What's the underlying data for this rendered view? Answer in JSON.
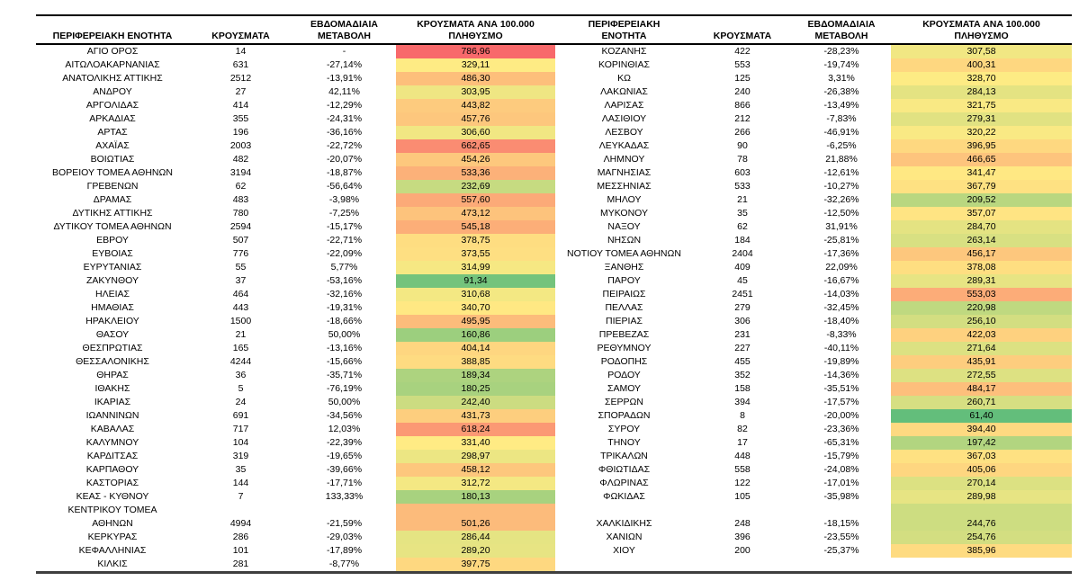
{
  "headers": {
    "left": {
      "region": "ΠΕΡΙΦΕΡΕΙΑΚΗ ΕΝΟΤΗΤΑ",
      "cases": "ΚΡΟΥΣΜΑΤΑ",
      "change": "ΕΒΔΟΜΑΔΙΑΙΑ\nΜΕΤΑΒΟΛΗ",
      "incidence": "ΚΡΟΥΣΜΑΤΑ ΑΝΑ 100.000\nΠΛΗΘΥΣΜΟ"
    },
    "right": {
      "region": "ΠΕΡΙΦΕΡΕΙΑΚΗ\nΕΝΟΤΗΤΑ",
      "cases": "ΚΡΟΥΣΜΑΤΑ",
      "change": "ΕΒΔΟΜΑΔΙΑΙΑ\nΜΕΤΑΒΟΛΗ",
      "incidence": "ΚΡΟΥΣΜΑΤΑ ΑΝΑ 100.000\nΠΛΗΘΥΣΜΟ"
    }
  },
  "chart_data": {
    "type": "table",
    "columns": [
      "ΠΕΡΙΦΕΡΕΙΑΚΗ ΕΝΟΤΗΤΑ",
      "ΚΡΟΥΣΜΑΤΑ",
      "ΕΒΔΟΜΑΔΙΑΙΑ ΜΕΤΑΒΟΛΗ",
      "ΚΡΟΥΣΜΑΤΑ ΑΝΑ 100.000 ΠΛΗΘΥΣΜΟ"
    ],
    "color_scale": {
      "min_value": 61.4,
      "mid_value": 331.4,
      "max_value": 786.96,
      "min_color": "#63BE7B",
      "mid_color": "#FFEB84",
      "max_color": "#F8696B"
    },
    "left_rows": [
      [
        "ΑΓΙΟ ΟΡΟΣ",
        "14",
        "-",
        "786,96"
      ],
      [
        "ΑΙΤΩΛΟΑΚΑΡΝΑΝΙΑΣ",
        "631",
        "-27,14%",
        "329,11"
      ],
      [
        "ΑΝΑΤΟΛΙΚΗΣ ΑΤΤΙΚΗΣ",
        "2512",
        "-13,91%",
        "486,30"
      ],
      [
        "ΑΝΔΡΟΥ",
        "27",
        "42,11%",
        "303,95"
      ],
      [
        "ΑΡΓΟΛΙΔΑΣ",
        "414",
        "-12,29%",
        "443,82"
      ],
      [
        "ΑΡΚΑΔΙΑΣ",
        "355",
        "-24,31%",
        "457,76"
      ],
      [
        "ΑΡΤΑΣ",
        "196",
        "-36,16%",
        "306,60"
      ],
      [
        "ΑΧΑΪΑΣ",
        "2003",
        "-22,72%",
        "662,65"
      ],
      [
        "ΒΟΙΩΤΙΑΣ",
        "482",
        "-20,07%",
        "454,26"
      ],
      [
        "ΒΟΡΕΙΟΥ ΤΟΜΕΑ ΑΘΗΝΩΝ",
        "3194",
        "-18,87%",
        "533,36"
      ],
      [
        "ΓΡΕΒΕΝΩΝ",
        "62",
        "-56,64%",
        "232,69"
      ],
      [
        "ΔΡΑΜΑΣ",
        "483",
        "-3,98%",
        "557,60"
      ],
      [
        "ΔΥΤΙΚΗΣ ΑΤΤΙΚΗΣ",
        "780",
        "-7,25%",
        "473,12"
      ],
      [
        "ΔΥΤΙΚΟΥ ΤΟΜΕΑ ΑΘΗΝΩΝ",
        "2594",
        "-15,17%",
        "545,18"
      ],
      [
        "ΕΒΡΟΥ",
        "507",
        "-22,71%",
        "378,75"
      ],
      [
        "ΕΥΒΟΙΑΣ",
        "776",
        "-22,09%",
        "373,55"
      ],
      [
        "ΕΥΡΥΤΑΝΙΑΣ",
        "55",
        "5,77%",
        "314,99"
      ],
      [
        "ΖΑΚΥΝΘΟΥ",
        "37",
        "-53,16%",
        "91,34"
      ],
      [
        "ΗΛΕΙΑΣ",
        "464",
        "-32,16%",
        "310,68"
      ],
      [
        "ΗΜΑΘΙΑΣ",
        "443",
        "-19,31%",
        "340,70"
      ],
      [
        "ΗΡΑΚΛΕΙΟΥ",
        "1500",
        "-18,66%",
        "495,95"
      ],
      [
        "ΘΑΣΟΥ",
        "21",
        "50,00%",
        "160,86"
      ],
      [
        "ΘΕΣΠΡΩΤΙΑΣ",
        "165",
        "-13,16%",
        "404,14"
      ],
      [
        "ΘΕΣΣΑΛΟΝΙΚΗΣ",
        "4244",
        "-15,66%",
        "388,85"
      ],
      [
        "ΘΗΡΑΣ",
        "36",
        "-35,71%",
        "189,34"
      ],
      [
        "ΙΘΑΚΗΣ",
        "5",
        "-76,19%",
        "180,25"
      ],
      [
        "ΙΚΑΡΙΑΣ",
        "24",
        "50,00%",
        "242,40"
      ],
      [
        "ΙΩΑΝΝΙΝΩΝ",
        "691",
        "-34,56%",
        "431,73"
      ],
      [
        "ΚΑΒΑΛΑΣ",
        "717",
        "12,03%",
        "618,24"
      ],
      [
        "ΚΑΛΥΜΝΟΥ",
        "104",
        "-22,39%",
        "331,40"
      ],
      [
        "ΚΑΡΔΙΤΣΑΣ",
        "319",
        "-19,65%",
        "298,97"
      ],
      [
        "ΚΑΡΠΑΘΟΥ",
        "35",
        "-39,66%",
        "458,12"
      ],
      [
        "ΚΑΣΤΟΡΙΑΣ",
        "144",
        "-17,71%",
        "312,72"
      ],
      [
        "ΚΕΑΣ - ΚΥΘΝΟΥ",
        "7",
        "133,33%",
        "180,13"
      ],
      [
        "ΚΕΝΤΡΙΚΟΥ ΤΟΜΕΑ\nΑΘΗΝΩΝ",
        "4994",
        "-21,59%",
        "501,26"
      ],
      [
        "ΚΕΡΚΥΡΑΣ",
        "286",
        "-29,03%",
        "286,44"
      ],
      [
        "ΚΕΦΑΛΛΗΝΙΑΣ",
        "101",
        "-17,89%",
        "289,20"
      ],
      [
        "ΚΙΛΚΙΣ",
        "281",
        "-8,77%",
        "397,75"
      ]
    ],
    "right_rows": [
      [
        "ΚΟΖΑΝΗΣ",
        "422",
        "-28,23%",
        "307,58"
      ],
      [
        "ΚΟΡΙΝΘΙΑΣ",
        "553",
        "-19,74%",
        "400,31"
      ],
      [
        "ΚΩ",
        "125",
        "3,31%",
        "328,70"
      ],
      [
        "ΛΑΚΩΝΙΑΣ",
        "240",
        "-26,38%",
        "284,13"
      ],
      [
        "ΛΑΡΙΣΑΣ",
        "866",
        "-13,49%",
        "321,75"
      ],
      [
        "ΛΑΣΙΘΙΟΥ",
        "212",
        "-7,83%",
        "279,31"
      ],
      [
        "ΛΕΣΒΟΥ",
        "266",
        "-46,91%",
        "320,22"
      ],
      [
        "ΛΕΥΚΑΔΑΣ",
        "90",
        "-6,25%",
        "396,95"
      ],
      [
        "ΛΗΜΝΟΥ",
        "78",
        "21,88%",
        "466,65"
      ],
      [
        "ΜΑΓΝΗΣΙΑΣ",
        "603",
        "-12,61%",
        "341,47"
      ],
      [
        "ΜΕΣΣΗΝΙΑΣ",
        "533",
        "-10,27%",
        "367,79"
      ],
      [
        "ΜΗΛΟΥ",
        "21",
        "-32,26%",
        "209,52"
      ],
      [
        "ΜΥΚΟΝΟΥ",
        "35",
        "-12,50%",
        "357,07"
      ],
      [
        "ΝΑΞΟΥ",
        "62",
        "31,91%",
        "284,70"
      ],
      [
        "ΝΗΣΩΝ",
        "184",
        "-25,81%",
        "263,14"
      ],
      [
        "ΝΟΤΙΟΥ ΤΟΜΕΑ ΑΘΗΝΩΝ",
        "2404",
        "-17,36%",
        "456,17"
      ],
      [
        "ΞΑΝΘΗΣ",
        "409",
        "22,09%",
        "378,08"
      ],
      [
        "ΠΑΡΟΥ",
        "45",
        "-16,67%",
        "289,31"
      ],
      [
        "ΠΕΙΡΑΙΩΣ",
        "2451",
        "-14,03%",
        "553,03"
      ],
      [
        "ΠΕΛΛΑΣ",
        "279",
        "-32,45%",
        "220,98"
      ],
      [
        "ΠΙΕΡΙΑΣ",
        "306",
        "-18,40%",
        "256,10"
      ],
      [
        "ΠΡΕΒΕΖΑΣ",
        "231",
        "-8,33%",
        "422,03"
      ],
      [
        "ΡΕΘΥΜΝΟΥ",
        "227",
        "-40,11%",
        "271,64"
      ],
      [
        "ΡΟΔΟΠΗΣ",
        "455",
        "-19,89%",
        "435,91"
      ],
      [
        "ΡΟΔΟΥ",
        "352",
        "-14,36%",
        "272,55"
      ],
      [
        "ΣΑΜΟΥ",
        "158",
        "-35,51%",
        "484,17"
      ],
      [
        "ΣΕΡΡΩΝ",
        "394",
        "-17,57%",
        "260,71"
      ],
      [
        "ΣΠΟΡΑΔΩΝ",
        "8",
        "-20,00%",
        "61,40"
      ],
      [
        "ΣΥΡΟΥ",
        "82",
        "-23,36%",
        "394,40"
      ],
      [
        "ΤΗΝΟΥ",
        "17",
        "-65,31%",
        "197,42"
      ],
      [
        "ΤΡΙΚΑΛΩΝ",
        "448",
        "-15,79%",
        "367,03"
      ],
      [
        "ΦΘΙΩΤΙΔΑΣ",
        "558",
        "-24,08%",
        "405,06"
      ],
      [
        "ΦΛΩΡΙΝΑΣ",
        "122",
        "-17,01%",
        "270,14"
      ],
      [
        "ΦΩΚΙΔΑΣ",
        "105",
        "-35,98%",
        "289,98"
      ],
      [
        "ΧΑΛΚΙΔΙΚΗΣ",
        "248",
        "-18,15%",
        "244,76"
      ],
      [
        "ΧΑΝΙΩΝ",
        "396",
        "-23,55%",
        "254,76"
      ],
      [
        "ΧΙΟΥ",
        "200",
        "-25,37%",
        "385,96"
      ]
    ]
  }
}
